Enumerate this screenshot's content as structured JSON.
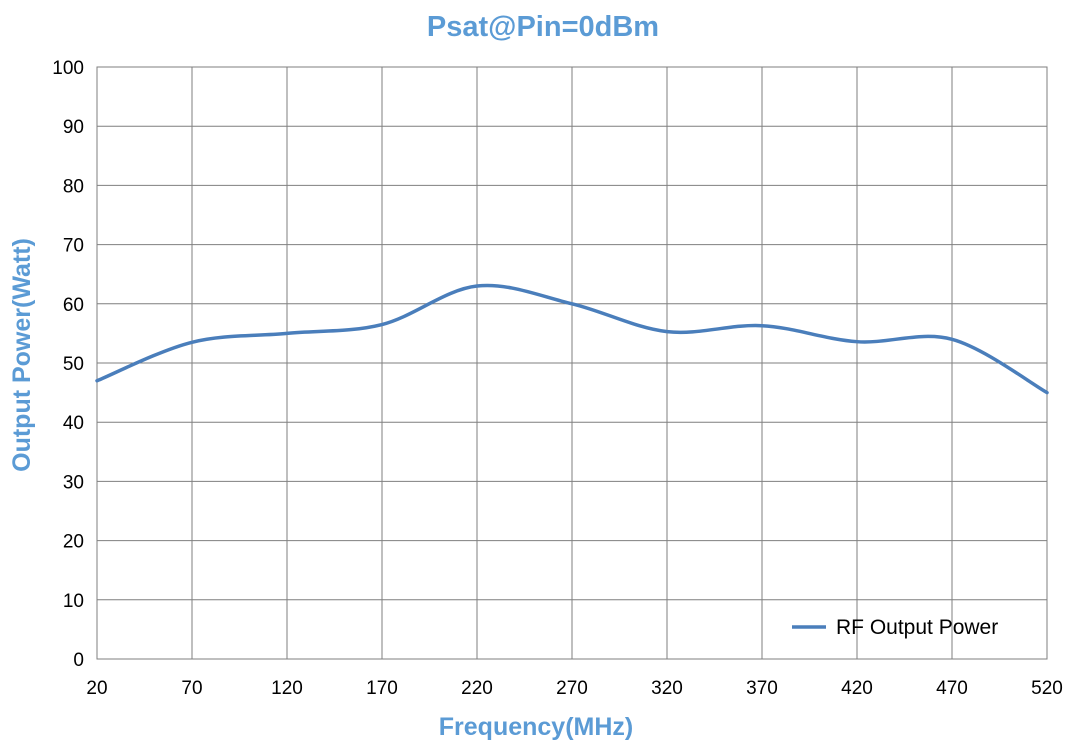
{
  "chart_data": {
    "type": "line",
    "title": "Psat@Pin=0dBm",
    "xlabel": "Frequency(MHz)",
    "ylabel": "Output Power(Watt)",
    "xlim": [
      20,
      520
    ],
    "ylim": [
      0,
      100
    ],
    "x_ticks": [
      20,
      70,
      120,
      170,
      220,
      270,
      320,
      370,
      420,
      470,
      520
    ],
    "y_ticks": [
      0,
      10,
      20,
      30,
      40,
      50,
      60,
      70,
      80,
      90,
      100
    ],
    "grid": true,
    "legend_position": "bottom-right",
    "series": [
      {
        "name": "RF Output Power",
        "x": [
          20,
          70,
          120,
          170,
          220,
          270,
          320,
          370,
          420,
          470,
          520
        ],
        "y": [
          47,
          53.5,
          55,
          56.5,
          63,
          60,
          55.3,
          56.3,
          53.6,
          54,
          45
        ]
      }
    ]
  },
  "colors": {
    "title": "#5b9bd5",
    "series": "#4a7ebb",
    "grid": "#7f7f7f",
    "axis": "#7f7f7f"
  }
}
